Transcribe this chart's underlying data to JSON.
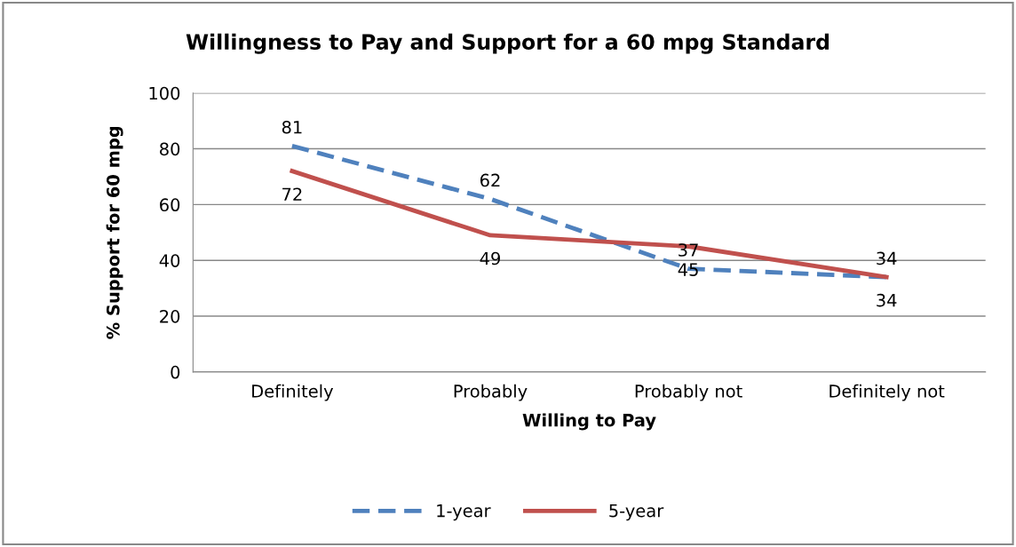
{
  "chart_data": {
    "type": "line",
    "title": "Willingness to Pay and Support for a 60 mpg Standard",
    "xlabel": "Willing to Pay",
    "ylabel": "% Support for 60 mpg",
    "categories": [
      "Definitely",
      "Probably",
      "Probably not",
      "Definitely not"
    ],
    "series": [
      {
        "name": "1-year",
        "color": "#4f81bd",
        "values": [
          81,
          62,
          37,
          34
        ],
        "line_style": "dashed"
      },
      {
        "name": "5-year",
        "color": "#c0504d",
        "values": [
          72,
          49,
          45,
          34
        ],
        "line_style": "solid"
      }
    ],
    "ylim": [
      0,
      100
    ],
    "yticks": [
      0,
      20,
      40,
      60,
      80,
      100
    ],
    "grid": "y",
    "legend": "bottom",
    "data_labels": true,
    "marker": "none"
  }
}
